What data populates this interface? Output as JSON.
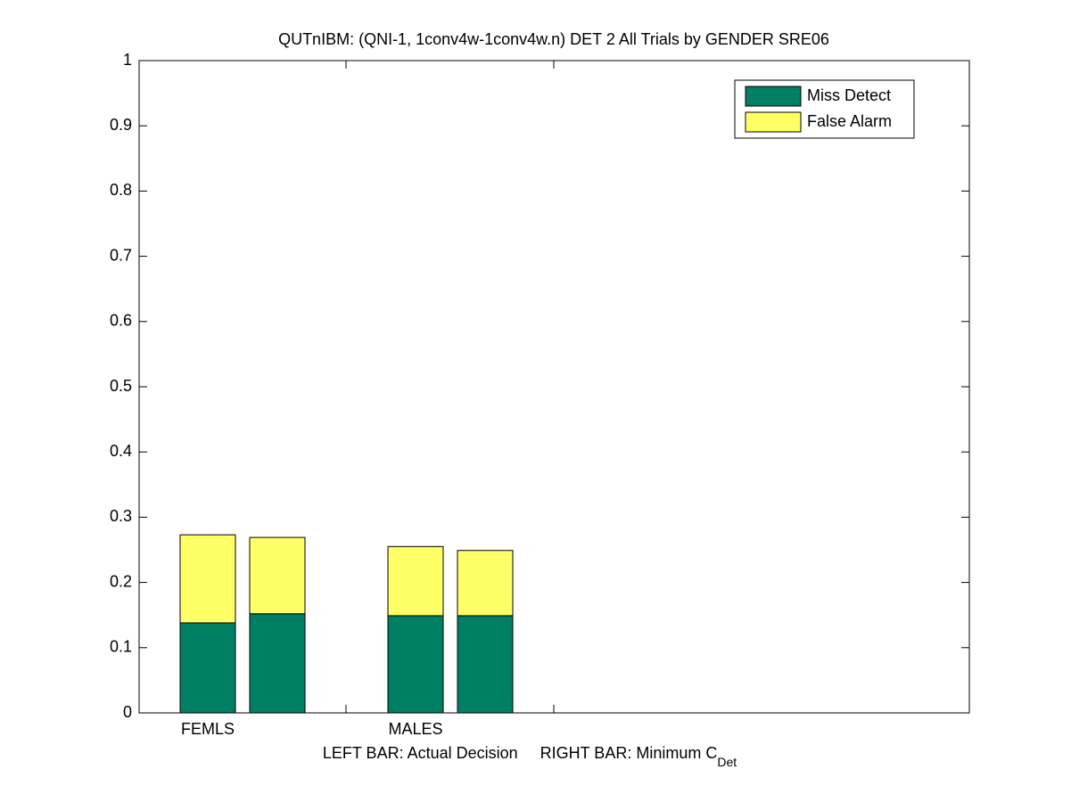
{
  "chart_data": {
    "type": "stacked_bar",
    "title": "QUTnIBM: (QNI-1, 1conv4w-1conv4w.n) DET 2 All Trials by GENDER SRE06",
    "xlabel": {
      "text": "LEFT BAR: Actual Decision     RIGHT BAR: Minimum C",
      "subscript": "Det"
    },
    "categories": [
      "FEMLS",
      null,
      "MALES",
      null
    ],
    "series": [
      {
        "name": "Miss Detect",
        "color": "#007f63",
        "values": [
          0.138,
          0.152,
          0.149,
          0.149
        ]
      },
      {
        "name": "False Alarm",
        "color": "#ffff66",
        "values": [
          0.135,
          0.117,
          0.106,
          0.1
        ]
      }
    ],
    "ylim": [
      0,
      1
    ],
    "yticks": [
      0,
      0.1,
      0.2,
      0.3,
      0.4,
      0.5,
      0.6,
      0.7,
      0.8,
      0.9,
      1
    ],
    "legend": "upper-right"
  }
}
